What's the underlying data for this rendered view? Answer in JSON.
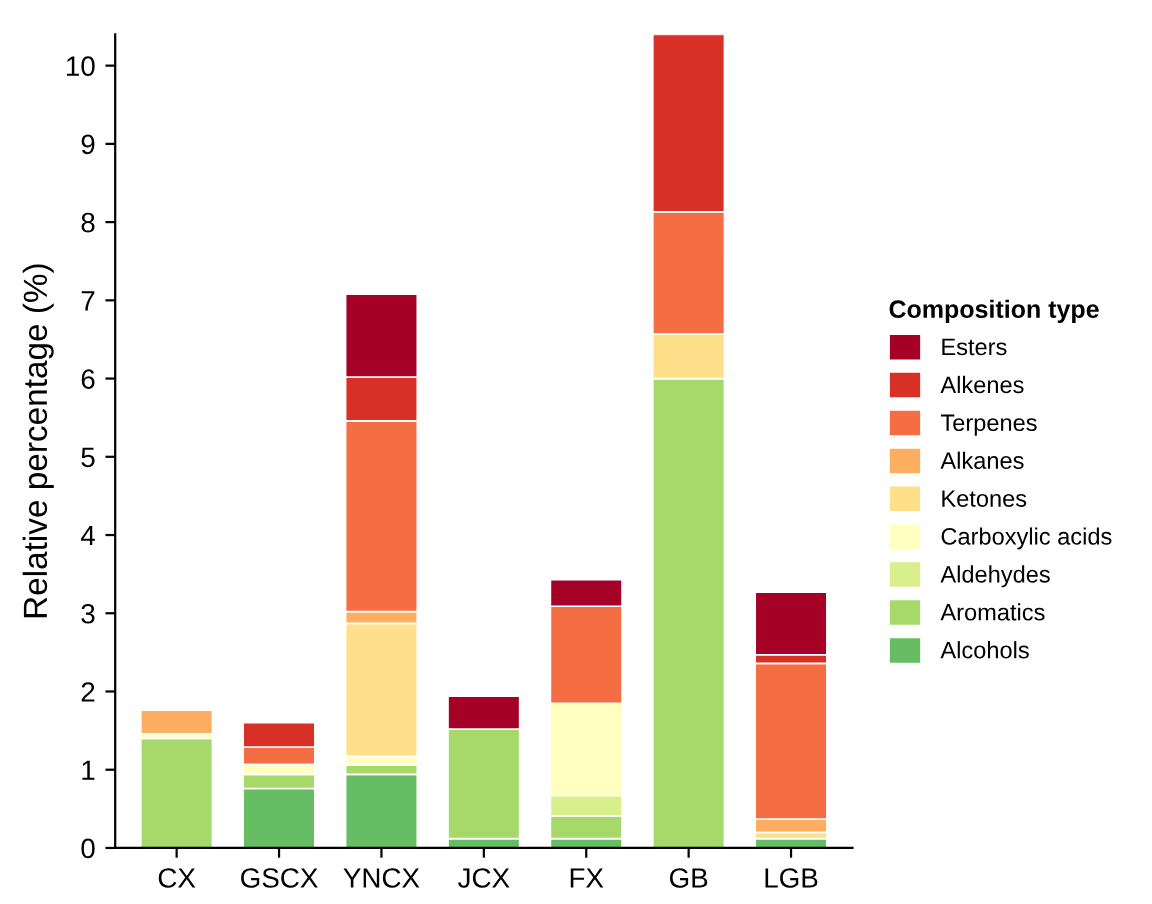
{
  "chart_data": {
    "type": "bar",
    "stacked": true,
    "ylabel": "Relative percentage (%)",
    "legend_title": "Composition type",
    "legend": "right",
    "categories": [
      "CX",
      "GSCX",
      "YNCX",
      "JCX",
      "FX",
      "GB",
      "LGB"
    ],
    "ylim": [
      0,
      10.4
    ],
    "yticks": [
      0,
      1,
      2,
      3,
      4,
      5,
      6,
      7,
      8,
      9,
      10
    ],
    "grid": false,
    "series": [
      {
        "name": "Alcohols",
        "color": "#66bd63",
        "values": [
          null,
          0.76,
          0.94,
          0.12,
          0.12,
          null,
          0.12
        ]
      },
      {
        "name": "Aromatics",
        "color": "#a6d96a",
        "values": [
          1.4,
          0.18,
          0.12,
          1.4,
          0.29,
          6.0,
          null
        ]
      },
      {
        "name": "Aldehydes",
        "color": "#d9ef8b",
        "values": [
          null,
          null,
          null,
          null,
          0.26,
          null,
          null
        ]
      },
      {
        "name": "Carboxylic acids",
        "color": "#ffffbf",
        "values": [
          0.06,
          0.13,
          0.11,
          null,
          1.18,
          null,
          null
        ]
      },
      {
        "name": "Ketones",
        "color": "#fee08b",
        "values": [
          null,
          null,
          1.7,
          null,
          null,
          0.57,
          0.08
        ]
      },
      {
        "name": "Alkanes",
        "color": "#fdae61",
        "values": [
          0.3,
          null,
          0.15,
          null,
          null,
          null,
          0.17
        ]
      },
      {
        "name": "Terpenes",
        "color": "#f46d43",
        "values": [
          null,
          0.22,
          2.44,
          null,
          1.24,
          1.56,
          1.99
        ]
      },
      {
        "name": "Alkenes",
        "color": "#d73027",
        "values": [
          null,
          0.31,
          0.56,
          null,
          null,
          2.27,
          0.11
        ]
      },
      {
        "name": "Esters",
        "color": "#a50026",
        "values": [
          null,
          null,
          1.06,
          0.42,
          0.34,
          null,
          0.8
        ]
      }
    ]
  }
}
